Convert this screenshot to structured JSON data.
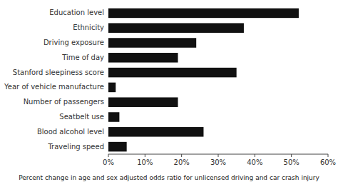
{
  "chart_data": {
    "type": "bar",
    "orientation": "horizontal",
    "categories": [
      "Traveling speed",
      "Blood alcohol level",
      "Seatbelt use",
      "Number of passengers",
      "Year of vehicle manufacture",
      "Stanford sleepiness score",
      "Time of day",
      "Driving exposure",
      "Ethnicity",
      "Education level"
    ],
    "values": [
      5,
      26,
      3,
      19,
      2,
      35,
      19,
      24,
      37,
      52
    ],
    "color": "#111111",
    "xlabel": "Percent change in age and sex adjusted odds ratio for unlicensed driving and car crash injury",
    "xlim": [
      0,
      60
    ],
    "xticks": [
      {
        "value": 0,
        "label": "0%"
      },
      {
        "value": 10,
        "label": "10%"
      },
      {
        "value": 20,
        "label": "20%"
      },
      {
        "value": 30,
        "label": "30%"
      },
      {
        "value": 40,
        "label": "40%"
      },
      {
        "value": 50,
        "label": "50%"
      },
      {
        "value": 60,
        "label": "60%"
      }
    ],
    "grid": false
  }
}
